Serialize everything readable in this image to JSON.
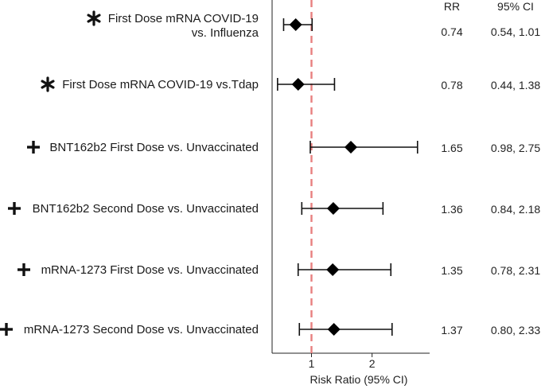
{
  "chart_data": {
    "type": "forest",
    "xlabel": "Risk Ratio (95% CI)",
    "x_ticks": [
      1,
      2
    ],
    "xlim": [
      0.35,
      2.95
    ],
    "reference_line": 1,
    "reference_color": "#e8807f",
    "marker_color": "#000000",
    "column_headers": {
      "rr": "RR",
      "ci": "95% CI"
    },
    "rows": [
      {
        "symbol": "*",
        "label_lines": [
          "First Dose mRNA COVID-19",
          "vs. Influenza"
        ],
        "rr": 0.74,
        "lower": 0.54,
        "upper": 1.01,
        "rr_text": "0.74",
        "ci_text": "0.54, 1.01"
      },
      {
        "symbol": "*",
        "label_lines": [
          "First Dose mRNA COVID-19 vs.Tdap"
        ],
        "rr": 0.78,
        "lower": 0.44,
        "upper": 1.38,
        "rr_text": "0.78",
        "ci_text": "0.44, 1.38"
      },
      {
        "symbol": "+",
        "label_lines": [
          "BNT162b2 First Dose vs. Unvaccinated"
        ],
        "rr": 1.65,
        "lower": 0.98,
        "upper": 2.75,
        "rr_text": "1.65",
        "ci_text": "0.98, 2.75"
      },
      {
        "symbol": "+",
        "label_lines": [
          "BNT162b2 Second Dose vs. Unvaccinated"
        ],
        "rr": 1.36,
        "lower": 0.84,
        "upper": 2.18,
        "rr_text": "1.36",
        "ci_text": "0.84, 2.18"
      },
      {
        "symbol": "+",
        "label_lines": [
          "mRNA-1273 First Dose vs. Unvaccinated"
        ],
        "rr": 1.35,
        "lower": 0.78,
        "upper": 2.31,
        "rr_text": "1.35",
        "ci_text": "0.78, 2.31"
      },
      {
        "symbol": "+",
        "label_lines": [
          "mRNA-1273 Second Dose vs. Unvaccinated"
        ],
        "rr": 1.37,
        "lower": 0.8,
        "upper": 2.33,
        "rr_text": "1.37",
        "ci_text": "0.80, 2.33"
      }
    ]
  }
}
